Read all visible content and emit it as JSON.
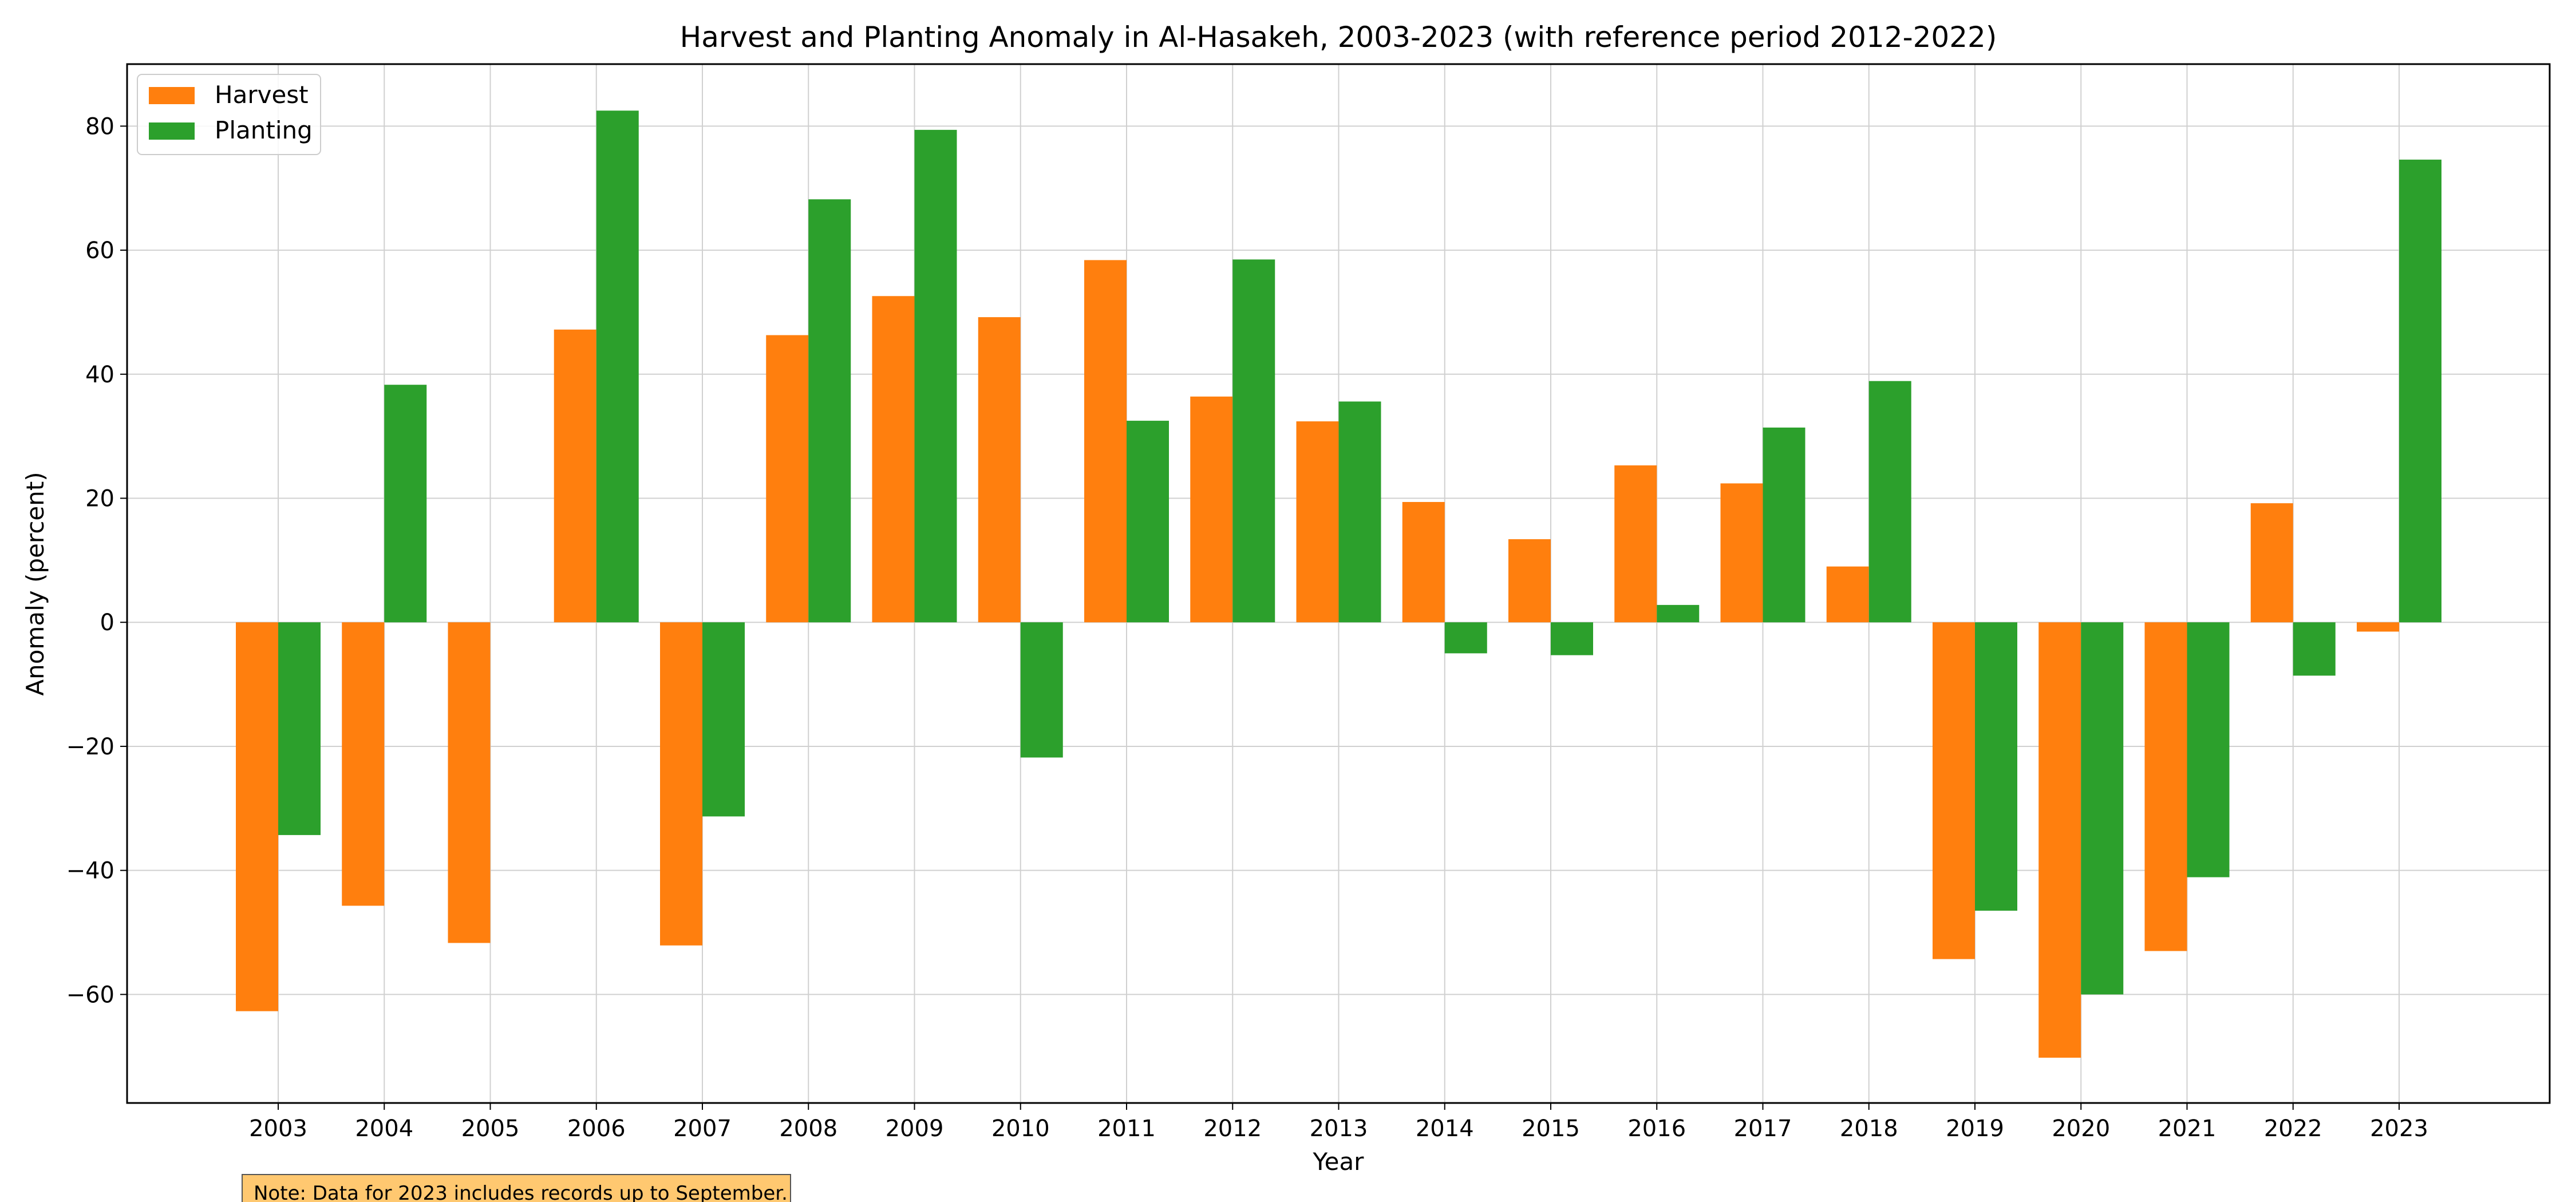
{
  "chart_data": {
    "type": "bar",
    "title": "Harvest and Planting Anomaly in Al-Hasakeh, 2003-2023 (with reference period 2012-2022)",
    "xlabel": "Year",
    "ylabel": "Anomaly (percent)",
    "ylim": [
      -77.5,
      90
    ],
    "yticks": [
      -60,
      -40,
      -20,
      0,
      20,
      40,
      60,
      80
    ],
    "grid": true,
    "legend_position": "top-left",
    "categories": [
      "2003",
      "2004",
      "2005",
      "2006",
      "2007",
      "2008",
      "2009",
      "2010",
      "2011",
      "2012",
      "2013",
      "2014",
      "2015",
      "2016",
      "2017",
      "2018",
      "2019",
      "2020",
      "2021",
      "2022",
      "2023"
    ],
    "series": [
      {
        "name": "Harvest",
        "color": "#ff7f0e",
        "values": [
          -62.7,
          -45.7,
          -51.7,
          47.2,
          -52.1,
          46.3,
          52.6,
          49.2,
          58.4,
          36.4,
          32.4,
          19.4,
          13.4,
          25.3,
          22.4,
          9.0,
          -54.3,
          -70.2,
          -53.0,
          19.2,
          -1.5
        ]
      },
      {
        "name": "Planting",
        "color": "#2ca02c",
        "values": [
          -34.3,
          38.3,
          0,
          82.5,
          -31.3,
          68.2,
          79.4,
          -21.8,
          32.5,
          58.5,
          35.6,
          -5.0,
          -5.3,
          2.8,
          31.4,
          38.9,
          -46.5,
          -60.0,
          -41.1,
          -8.6,
          74.6
        ]
      }
    ],
    "note": "Note: Data for 2023 includes records up to September."
  }
}
